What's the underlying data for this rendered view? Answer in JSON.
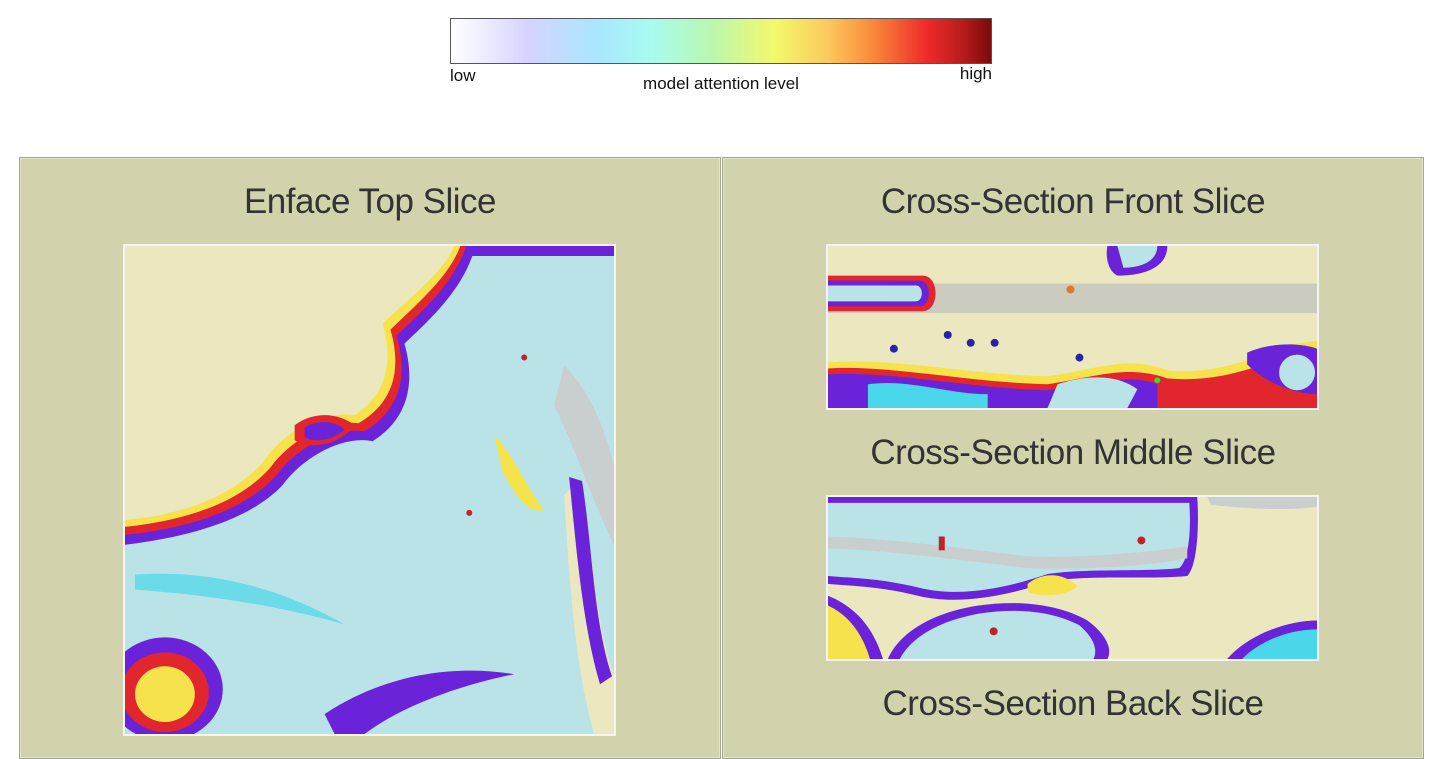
{
  "colorbar": {
    "low_label": "low",
    "high_label": "high",
    "title": "model attention level",
    "colors": [
      "#ffffff",
      "#d6d4ff",
      "#a9e6ff",
      "#a8fbef",
      "#b9f7b0",
      "#f3f96b",
      "#fbc85c",
      "#f98a3a",
      "#ef2b2b",
      "#7a0a0a"
    ]
  },
  "panels": {
    "left": {
      "title": "Enface Top Slice"
    },
    "right": {
      "titles": {
        "front": "Cross-Section Front Slice",
        "middle": "Cross-Section Middle Slice",
        "back": "Cross-Section Back Slice"
      }
    }
  },
  "theme": {
    "panel_background": "#d2d3ac",
    "title_color": "#333333"
  }
}
